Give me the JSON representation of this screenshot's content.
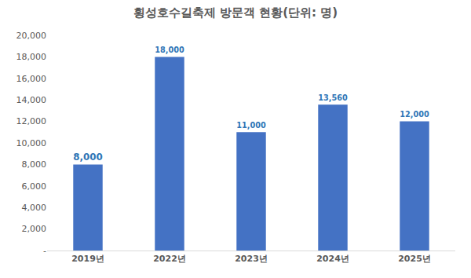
{
  "chart_data": {
    "type": "bar",
    "title": "횡성호수길축제 방문객 현황(단위: 명)",
    "categories": [
      "2019년",
      "2022년",
      "2023년",
      "2024년",
      "2025년"
    ],
    "values": [
      8000,
      18000,
      11000,
      13560,
      12000
    ],
    "value_labels": [
      "8,000",
      "18,000",
      "11,000",
      "13,560",
      "12,000"
    ],
    "data_labels": true,
    "color": "#4472c4",
    "ylim": [
      0,
      20000
    ],
    "yticks": [
      {
        "value": 0,
        "label": "-"
      },
      {
        "value": 2000,
        "label": "2,000"
      },
      {
        "value": 4000,
        "label": "4,000"
      },
      {
        "value": 6000,
        "label": "6,000"
      },
      {
        "value": 8000,
        "label": "8,000"
      },
      {
        "value": 10000,
        "label": "10,000"
      },
      {
        "value": 12000,
        "label": "12,000"
      },
      {
        "value": 14000,
        "label": "14,000"
      },
      {
        "value": 16000,
        "label": "16,000"
      },
      {
        "value": 18000,
        "label": "18,000"
      },
      {
        "value": 20000,
        "label": "20,000"
      }
    ],
    "grid": false
  }
}
